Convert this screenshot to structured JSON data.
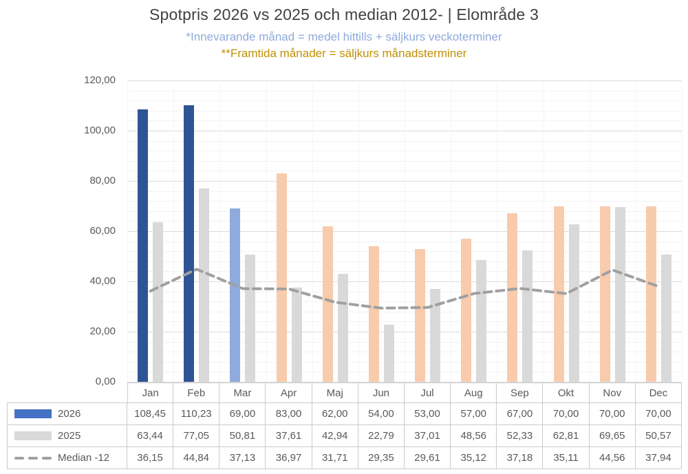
{
  "title": "Spotpris 2026 vs 2025 och median 2012- | Elområde 3",
  "subtitles": {
    "current_month": "*Innevarande månad = medel hittills + säljkurs veckoterminer",
    "future_months": "**Framtida månader = säljkurs månadsterminer"
  },
  "colors": {
    "bar_2026_actual": "#2F5496",
    "bar_2026_current_month": "#8FAADC",
    "bar_2026_future": "#F7CBAC",
    "bar_2025": "#D9D9D9",
    "median_line": "#A0A0A0",
    "legend_2026_swatch": "#4472C4",
    "subtitle_current": "#8EAADB",
    "subtitle_future": "#BF9000",
    "title_text": "#404040",
    "axis_text": "#595959",
    "grid_major": "#DBDBDB",
    "grid_minor": "#F2F2F2",
    "table_border": "#CBCBCB"
  },
  "y_axis": {
    "min": 0,
    "max": 120,
    "major_unit": 20,
    "minor_unit": 4,
    "tick_labels": [
      "120,00",
      "100,00",
      "80,00",
      "60,00",
      "40,00",
      "20,00",
      "0,00"
    ]
  },
  "chart_data": {
    "type": "bar",
    "title": "Spotpris 2026 vs 2025 och median 2012- | Elområde 3",
    "categories": [
      "Jan",
      "Feb",
      "Mar",
      "Apr",
      "Maj",
      "Jun",
      "Jul",
      "Aug",
      "Sep",
      "Okt",
      "Nov",
      "Dec"
    ],
    "series": [
      {
        "name": "2026",
        "type": "bar",
        "values": [
          108.45,
          110.23,
          69.0,
          83.0,
          62.0,
          54.0,
          53.0,
          57.0,
          67.0,
          70.0,
          70.0,
          70.0
        ],
        "point_styles": [
          "actual",
          "actual",
          "current_month",
          "future",
          "future",
          "future",
          "future",
          "future",
          "future",
          "future",
          "future",
          "future"
        ]
      },
      {
        "name": "2025",
        "type": "bar",
        "values": [
          63.44,
          77.05,
          50.81,
          37.61,
          42.94,
          22.79,
          37.01,
          48.56,
          52.33,
          62.81,
          69.65,
          50.57
        ]
      },
      {
        "name": "Median -12",
        "type": "line",
        "dashed": true,
        "values": [
          36.15,
          44.84,
          37.13,
          36.97,
          31.71,
          29.35,
          29.61,
          35.12,
          37.18,
          35.11,
          44.56,
          37.94
        ]
      }
    ],
    "ylim": [
      0,
      120
    ],
    "grid": true,
    "legend_position": "table-left",
    "decimal_separator": ","
  }
}
